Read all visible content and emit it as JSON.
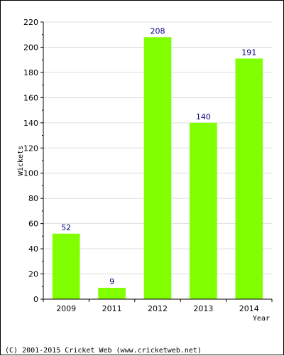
{
  "chart_data": {
    "type": "bar",
    "categories": [
      "2009",
      "2011",
      "2012",
      "2013",
      "2014"
    ],
    "values": [
      52,
      9,
      208,
      140,
      191
    ],
    "xlabel": "Year",
    "ylabel": "Wickets",
    "ylim": [
      0,
      220
    ],
    "yticks": [
      0,
      20,
      40,
      60,
      80,
      100,
      120,
      140,
      160,
      180,
      200,
      220
    ],
    "grid": true,
    "data_labels": true
  },
  "footer": {
    "copyright": "(C) 2001-2015 Cricket Web (www.cricketweb.net)"
  },
  "colors": {
    "bar": "#80ff00",
    "data_label": "#000080",
    "grid": "#dddddd",
    "axis": "#000000"
  }
}
